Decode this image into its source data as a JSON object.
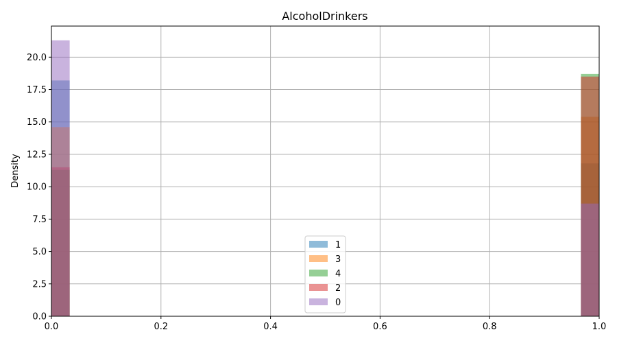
{
  "chart_data": {
    "type": "histogram",
    "title": "AlcoholDrinkers",
    "xlabel": "",
    "ylabel": "Density",
    "xlim": [
      0,
      1
    ],
    "ylim": [
      0,
      22.4
    ],
    "x_ticks": [
      "0.0",
      "0.2",
      "0.4",
      "0.6",
      "0.8",
      "1.0"
    ],
    "y_ticks": [
      "0.0",
      "2.5",
      "5.0",
      "7.5",
      "10.0",
      "12.5",
      "15.0",
      "17.5",
      "20.0"
    ],
    "bin_width": 0.0333,
    "bins": [
      0,
      1
    ],
    "grid": true,
    "legend_position": "lower center",
    "series": [
      {
        "name": "1",
        "color": "#1f77b4",
        "values": [
          18.2,
          11.8
        ]
      },
      {
        "name": "3",
        "color": "#ff7f0e",
        "values": [
          14.6,
          15.4
        ]
      },
      {
        "name": "4",
        "color": "#2ca02c",
        "values": [
          11.3,
          18.7
        ]
      },
      {
        "name": "2",
        "color": "#d62728",
        "values": [
          11.5,
          18.5
        ]
      },
      {
        "name": "0",
        "color": "#9467bd",
        "values": [
          21.3,
          8.7
        ]
      }
    ]
  }
}
